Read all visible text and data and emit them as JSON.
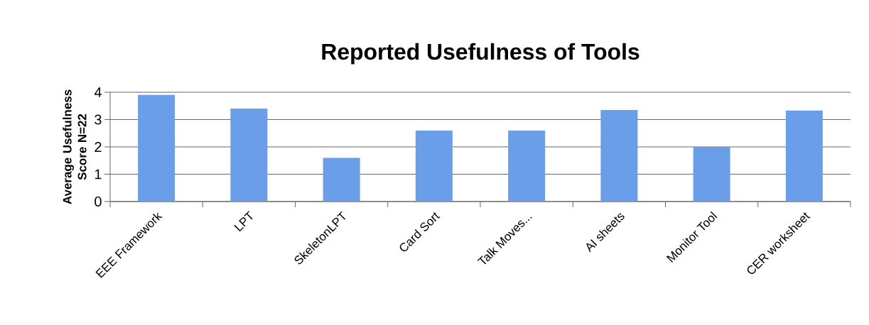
{
  "chart_data": {
    "type": "bar",
    "title": "Reported Usefulness of Tools",
    "ylabel": "Average Usefulness Score N=22",
    "categories": [
      "EEE Framework",
      "LPT",
      "SkeletonLPT",
      "Card Sort",
      "Talk Moves...",
      "AI sheets",
      "Monitor Tool",
      "CER worksheet"
    ],
    "values": [
      3.9,
      3.4,
      1.6,
      2.6,
      2.6,
      3.35,
      2.0,
      3.33
    ],
    "color": "#6a9ee8",
    "ylim": [
      0,
      4
    ],
    "yticks": [
      0,
      1,
      2,
      3,
      4
    ],
    "grid": "y"
  }
}
